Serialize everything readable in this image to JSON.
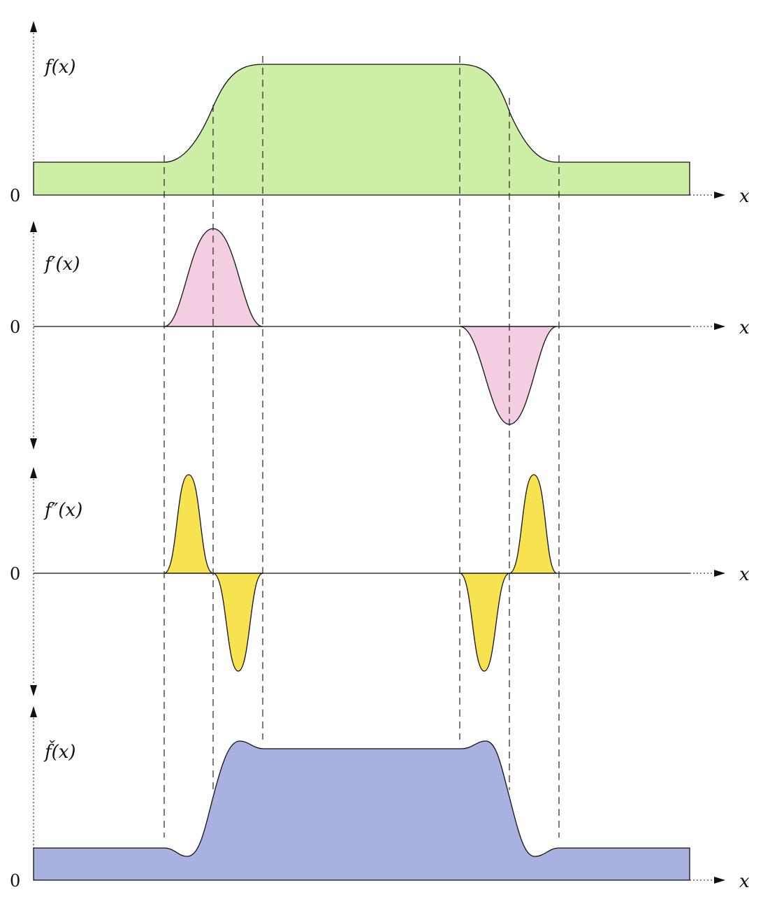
{
  "panels": [
    {
      "id": "f",
      "label": "f(x)",
      "zero_label": "0",
      "x_label": "x",
      "fill": "#cdeea5"
    },
    {
      "id": "fp",
      "label": "f′(x)",
      "zero_label": "0",
      "x_label": "x",
      "fill": "#f3cde2"
    },
    {
      "id": "fpp",
      "label": "f″(x)",
      "zero_label": "0",
      "x_label": "x",
      "fill": "#f7e24f"
    },
    {
      "id": "fc",
      "label": "f̌(x)",
      "zero_label": "0",
      "x_label": "x",
      "fill": "#a8b1df"
    }
  ],
  "colors": {
    "axis": "#111111",
    "guide": "#222222",
    "outline": "#111111"
  }
}
